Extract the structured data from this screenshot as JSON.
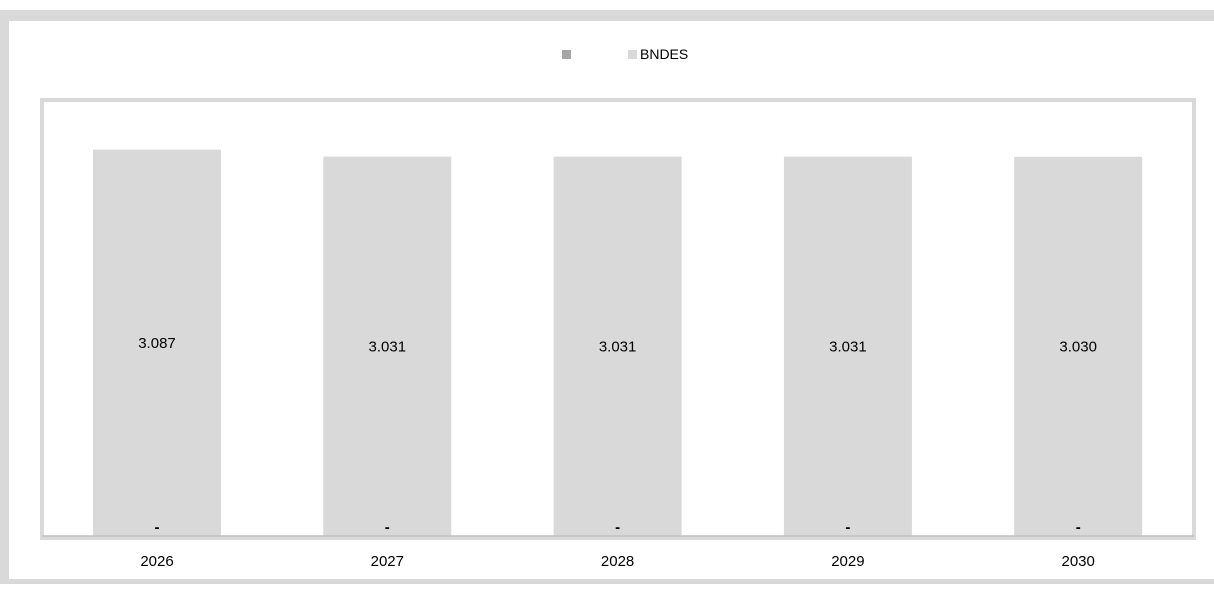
{
  "chart_data": {
    "type": "bar",
    "categories": [
      "2026",
      "2027",
      "2028",
      "2029",
      "2030"
    ],
    "series": [
      {
        "name": "",
        "values": [
          0,
          0,
          0,
          0,
          0
        ],
        "labels": [
          "-",
          "-",
          "-",
          "-",
          "-"
        ],
        "color": "#a6a6a6"
      },
      {
        "name": "BNDES",
        "values": [
          3.087,
          3.031,
          3.031,
          3.031,
          3.03
        ],
        "labels": [
          "3.087",
          "3.031",
          "3.031",
          "3.031",
          "3.030"
        ],
        "color": "#d9d9d9"
      }
    ],
    "stacked": true,
    "legend_position": "top",
    "grid": false,
    "title": "",
    "xlabel": "",
    "ylabel": ""
  },
  "colors": {
    "frame": "#d9d9d9",
    "plot_border": "#d9d9d9",
    "axis_line": "#bfbfbf",
    "text": "#000000"
  }
}
